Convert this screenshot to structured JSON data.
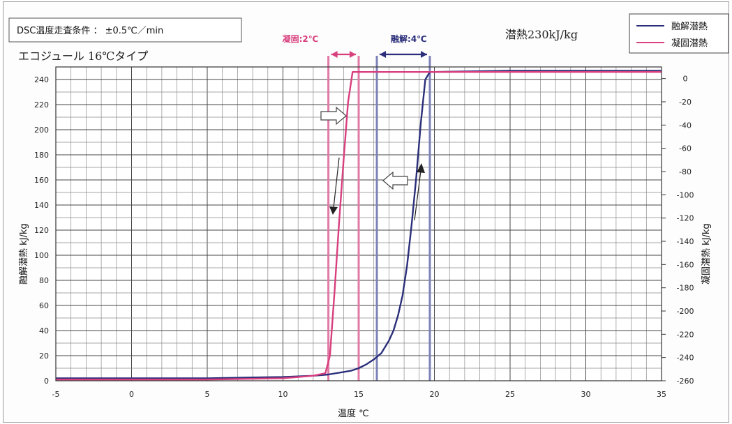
{
  "chart_data": {
    "type": "line",
    "title_box": "DSC温度走査条件 ： ±0.5℃／min",
    "subtitle": "エコジュール 16℃タイプ",
    "latent_heat_label": "潜熱230kJ/kg",
    "xlabel": "温度 ℃",
    "ylabel_left": "融解潜熱 kJ/kg",
    "ylabel_right": "凝固潜熱 kJ/kg",
    "xlim": [
      -5,
      35
    ],
    "ylim_left": [
      0,
      250
    ],
    "ylim_right": [
      -260,
      10
    ],
    "x_ticks": [
      "-5",
      "0",
      "5",
      "10",
      "15",
      "20",
      "25",
      "30",
      "35"
    ],
    "y_left_ticks": [
      "0",
      "20",
      "40",
      "60",
      "80",
      "100",
      "120",
      "140",
      "160",
      "180",
      "200",
      "220",
      "240"
    ],
    "y_right_ticks": [
      "0",
      "-20",
      "-40",
      "-60",
      "-80",
      "-100",
      "-120",
      "-140",
      "-160",
      "-180",
      "-200",
      "-220",
      "-240",
      "-260"
    ],
    "grid": true,
    "legend_position": "top-right",
    "series": [
      {
        "name": "融解潜熱",
        "color": "#2b2f7a",
        "axis": "left",
        "x": [
          -5,
          0,
          5,
          10,
          12,
          13,
          14,
          14.5,
          15,
          15.5,
          16,
          16.5,
          17,
          17.3,
          17.6,
          17.9,
          18.2,
          18.5,
          18.8,
          19.1,
          19.4,
          19.7,
          20,
          25,
          30,
          35
        ],
        "y": [
          2,
          2,
          2,
          3,
          4,
          5,
          7,
          8,
          10,
          13,
          17,
          22,
          32,
          40,
          52,
          68,
          92,
          125,
          162,
          205,
          240,
          246,
          246,
          247,
          247,
          247
        ]
      },
      {
        "name": "凝固潜熱",
        "color": "#d83f7e",
        "axis": "left",
        "x": [
          -5,
          0,
          5,
          10,
          12,
          12.8,
          13.1,
          13.4,
          13.7,
          14,
          14.3,
          14.6,
          14.9,
          15.2,
          16,
          20,
          25,
          30,
          35
        ],
        "y": [
          1,
          1,
          1,
          2,
          4,
          6,
          20,
          70,
          125,
          175,
          222,
          246,
          246,
          246,
          246,
          246,
          246,
          246,
          246
        ]
      }
    ],
    "annotations": [
      {
        "text": "凝固:2℃",
        "color": "#d83f7e",
        "x_from": 13,
        "x_to": 15
      },
      {
        "text": "融解:4℃",
        "color": "#2b2f7a",
        "x_from": 16.2,
        "x_to": 19.7
      }
    ],
    "vertical_lines": [
      {
        "x": 13.0,
        "color": "#e07aa6"
      },
      {
        "x": 15.0,
        "color": "#e07aa6"
      },
      {
        "x": 16.2,
        "color": "#7c82b8"
      },
      {
        "x": 19.7,
        "color": "#7c82b8"
      }
    ]
  }
}
